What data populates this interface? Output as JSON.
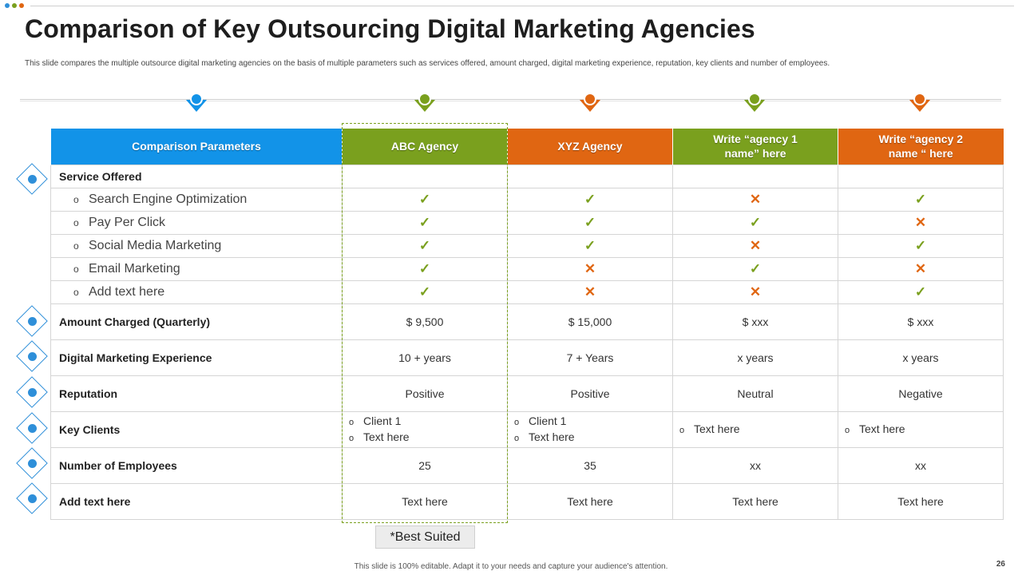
{
  "slide": {
    "title": "Comparison of Key Outsourcing Digital Marketing Agencies",
    "subtitle": "This slide compares the multiple  outsource digital marketing agencies on the basis of multiple  parameters such as services offered, amount charged, digital marketing  experience, reputation, key clients and number of employees.",
    "best_label": "*Best Suited",
    "footer": "This slide is 100% editable.  Adapt it to your needs and capture your audience's attention.",
    "page_number": "26"
  },
  "colors": {
    "blue": "#1293e8",
    "green": "#7aa01e",
    "orange": "#e06612",
    "dot1": "#2e8fd9",
    "dot2": "#7aa01e",
    "dot3": "#e06612"
  },
  "header": {
    "param": "Comparison Parameters",
    "agency_abc": "ABC Agency",
    "agency_xyz": "XYZ Agency",
    "agency_1_line1": "Write “agency 1",
    "agency_1_line2": "name” here",
    "agency_2_line1": "Write “agency 2",
    "agency_2_line2": "name “ here"
  },
  "symbols": {
    "yes": "✓",
    "no": "✕",
    "bullet": "o"
  },
  "services": {
    "label": "Service Offered",
    "icon": "service-icon",
    "items": [
      {
        "name": "Search Engine Optimization",
        "abc": "✓",
        "xyz": "✓",
        "a1": "✕",
        "a2": "✓"
      },
      {
        "name": "Pay Per Click",
        "abc": "✓",
        "xyz": "✓",
        "a1": "✓",
        "a2": "✕"
      },
      {
        "name": "Social Media Marketing",
        "abc": "✓",
        "xyz": "✓",
        "a1": "✕",
        "a2": "✓"
      },
      {
        "name": "Email Marketing",
        "abc": "✓",
        "xyz": "✕",
        "a1": "✓",
        "a2": "✕"
      },
      {
        "name": "Add text here",
        "abc": "✓",
        "xyz": "✕",
        "a1": "✕",
        "a2": "✓"
      }
    ]
  },
  "rows": {
    "amount": {
      "label": "Amount  Charged (Quarterly)",
      "abc": "$ 9,500",
      "xyz": "$ 15,000",
      "a1": "$ xxx",
      "a2": "$ xxx",
      "icon": "money-hand-icon"
    },
    "experience": {
      "label": "Digital Marketing Experience",
      "abc": "10 + years",
      "xyz": "7 + Years",
      "a1": "x years",
      "a2": "x years",
      "icon": "experience-icon"
    },
    "reputation": {
      "label": "Reputation",
      "abc": "Positive",
      "xyz": "Positive",
      "a1": "Neutral",
      "a2": "Negative",
      "icon": "badge-icon"
    },
    "clients": {
      "label": "Key Clients",
      "abc_1": "Client 1",
      "abc_2": "Text here",
      "xyz_1": "Client 1",
      "xyz_2": "Text here",
      "a1": "Text here",
      "a2": "Text here",
      "icon": "clients-icon"
    },
    "employees": {
      "label": "Number of Employees",
      "abc": "25",
      "xyz": "35",
      "a1": "xx",
      "a2": "xx",
      "icon": "team-icon"
    },
    "add": {
      "label": "Add  text here",
      "abc": "Text here",
      "xyz": "Text here",
      "a1": "Text here",
      "a2": "Text here",
      "icon": "presentation-icon"
    }
  }
}
